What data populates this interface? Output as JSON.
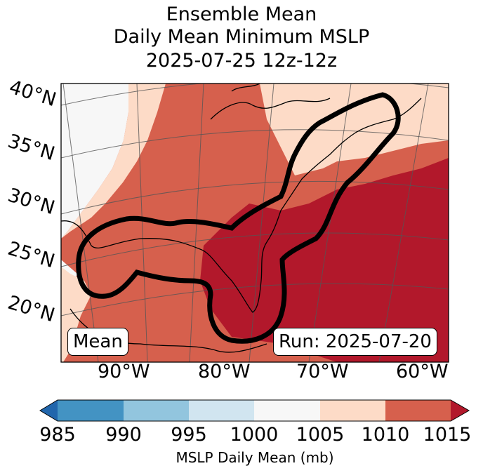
{
  "title": {
    "line1": "Ensemble Mean",
    "line2": "Daily Mean Minimum MSLP",
    "line3": "2025-07-25 12z-12z"
  },
  "map": {
    "lat_labels": [
      "40°N",
      "35°N",
      "30°N",
      "25°N",
      "20°N"
    ],
    "lon_labels": [
      "90°W",
      "80°W",
      "70°W",
      "60°W"
    ],
    "left_badge": "Mean",
    "right_badge": "Run: 2025-07-20"
  },
  "colorbar": {
    "label": "MSLP Daily Mean (mb)",
    "ticks": [
      "985",
      "990",
      "995",
      "1000",
      "1005",
      "1010",
      "1015"
    ],
    "colors": [
      "#2166ac",
      "#4393c3",
      "#92c5de",
      "#d1e5f0",
      "#f7f7f7",
      "#fddbc7",
      "#d6604d",
      "#b2182b"
    ]
  }
}
